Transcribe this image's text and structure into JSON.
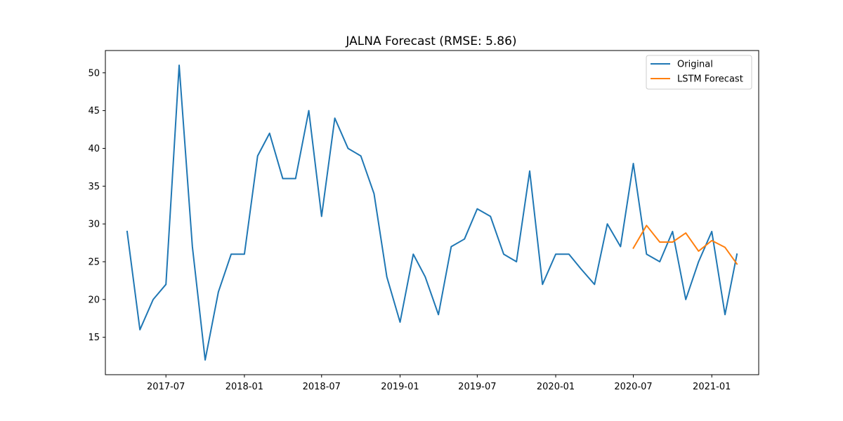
{
  "chart_data": {
    "type": "line",
    "title": "JALNA Forecast (RMSE: 5.86)",
    "xlabel": "",
    "ylabel": "",
    "x_tick_labels": [
      "2017-07",
      "2018-01",
      "2018-07",
      "2019-01",
      "2019-07",
      "2020-01",
      "2020-07",
      "2021-01"
    ],
    "x_tick_dates": [
      "2017-07-01",
      "2018-01-01",
      "2018-07-01",
      "2019-01-01",
      "2019-07-01",
      "2020-01-01",
      "2020-07-01",
      "2021-01-01"
    ],
    "y_ticks": [
      15,
      20,
      25,
      30,
      35,
      40,
      45,
      50
    ],
    "xlim": [
      "2017-02-09",
      "2021-04-21"
    ],
    "ylim": [
      10.05,
      52.95
    ],
    "grid": false,
    "legend_position": "top-right",
    "series": [
      {
        "name": "Original",
        "color": "#1f77b4",
        "x": [
          "2017-04-01",
          "2017-05-01",
          "2017-06-01",
          "2017-07-01",
          "2017-08-01",
          "2017-09-01",
          "2017-10-01",
          "2017-11-01",
          "2017-12-01",
          "2018-01-01",
          "2018-02-01",
          "2018-03-01",
          "2018-04-01",
          "2018-05-01",
          "2018-06-01",
          "2018-07-01",
          "2018-08-01",
          "2018-09-01",
          "2018-10-01",
          "2018-11-01",
          "2018-12-01",
          "2019-01-01",
          "2019-02-01",
          "2019-03-01",
          "2019-04-01",
          "2019-05-01",
          "2019-06-01",
          "2019-07-01",
          "2019-08-01",
          "2019-09-01",
          "2019-10-01",
          "2019-11-01",
          "2019-12-01",
          "2020-01-01",
          "2020-02-01",
          "2020-03-01",
          "2020-04-01",
          "2020-05-01",
          "2020-06-01",
          "2020-07-01",
          "2020-08-01",
          "2020-09-01",
          "2020-10-01",
          "2020-11-01",
          "2020-12-01",
          "2021-01-01",
          "2021-02-01",
          "2021-03-01"
        ],
        "values": [
          29,
          16,
          20,
          22,
          51,
          27,
          12,
          21,
          26,
          26,
          39,
          42,
          36,
          36,
          45,
          31,
          44,
          40,
          39,
          34,
          23,
          17,
          26,
          23,
          18,
          27,
          28,
          32,
          31,
          26,
          25,
          37,
          22,
          26,
          26,
          24,
          22,
          30,
          27,
          38,
          26,
          25,
          29,
          20,
          25,
          29,
          18,
          26
        ]
      },
      {
        "name": "LSTM Forecast",
        "color": "#ff7f0e",
        "x": [
          "2020-07-01",
          "2020-08-01",
          "2020-09-01",
          "2020-10-01",
          "2020-11-01",
          "2020-12-01",
          "2021-01-01",
          "2021-02-01",
          "2021-03-01"
        ],
        "values": [
          26.8,
          29.8,
          27.6,
          27.6,
          28.8,
          26.4,
          27.8,
          26.9,
          24.7
        ]
      }
    ]
  }
}
